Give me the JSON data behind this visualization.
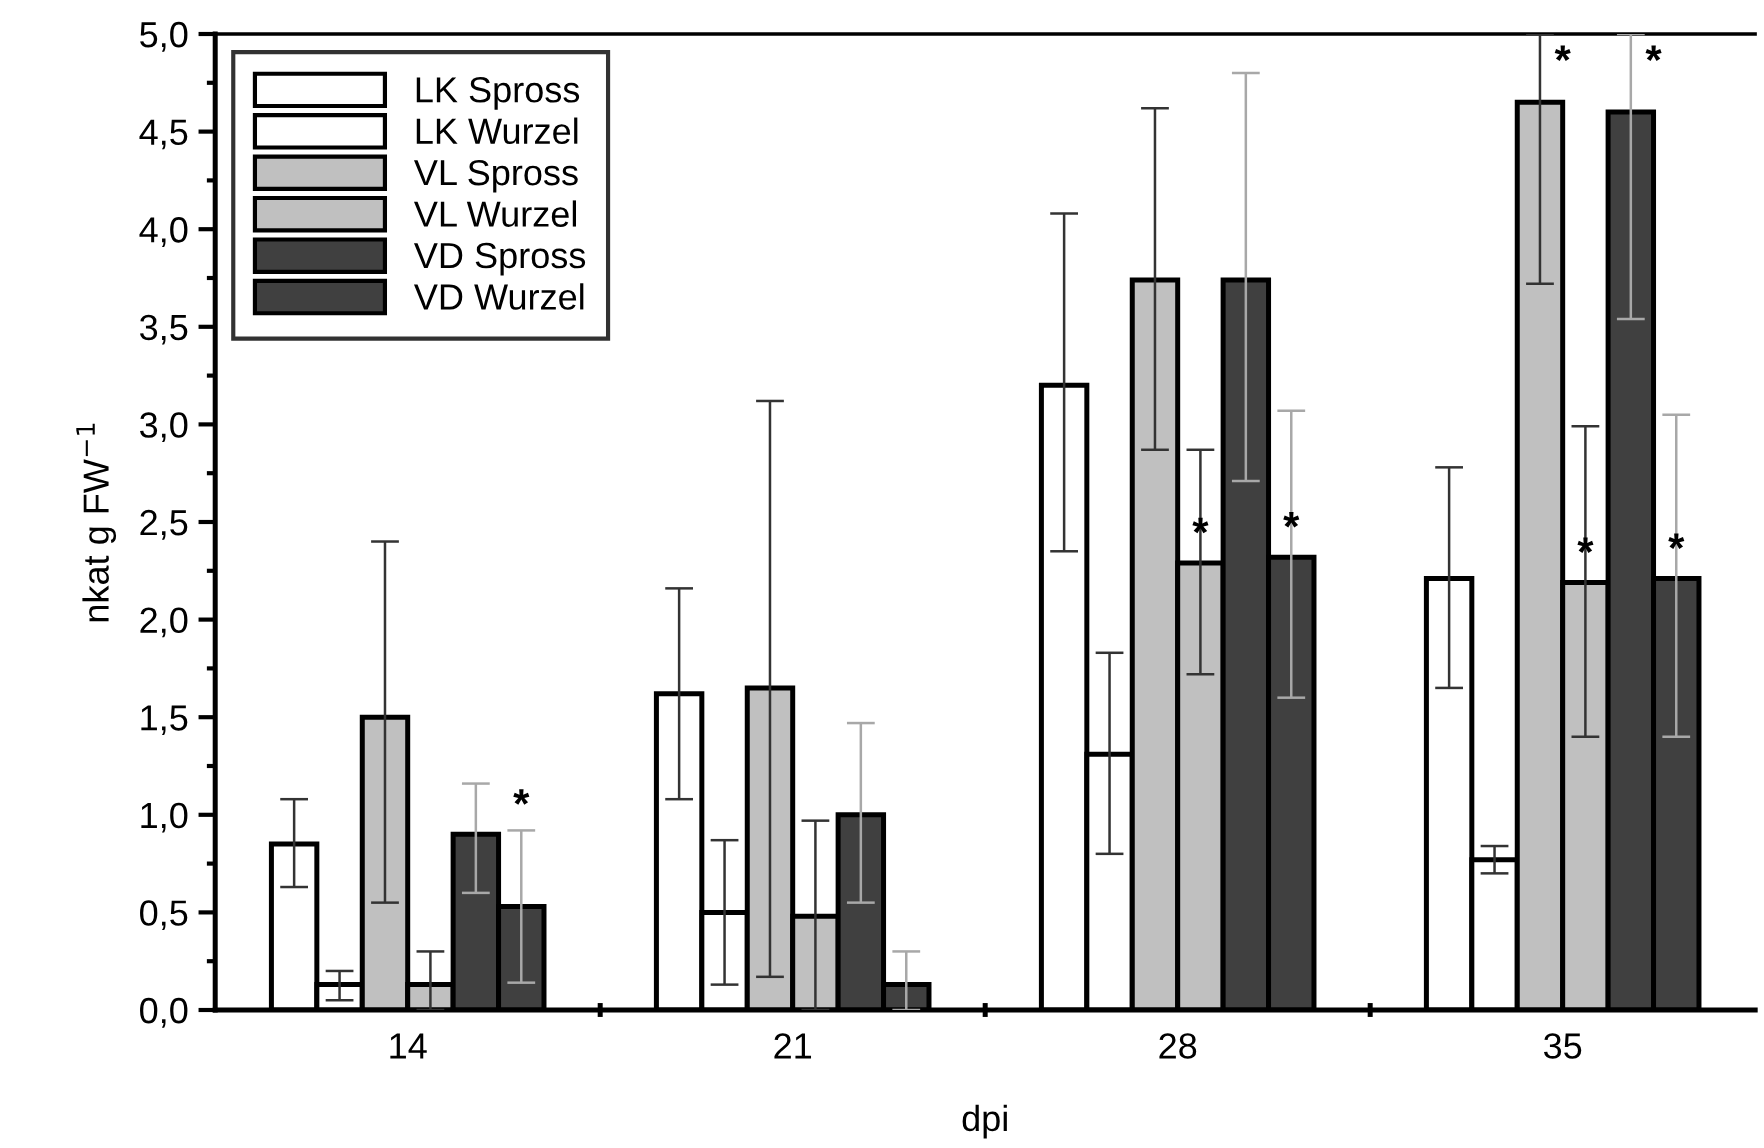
{
  "chart_data": {
    "type": "bar",
    "xlabel": "dpi",
    "ylabel": "nkat g FW$^{−1}$",
    "categories": [
      "14",
      "21",
      "28",
      "35"
    ],
    "series": [
      {
        "name": "LK Spross",
        "color": "#ffffff",
        "values": [
          0.85,
          1.62,
          3.2,
          2.21
        ],
        "errors": [
          [
            0.63,
            1.08
          ],
          [
            1.08,
            2.16
          ],
          [
            2.35,
            4.08
          ],
          [
            1.65,
            2.78
          ]
        ],
        "value_labels": [
          null,
          null,
          null,
          null
        ]
      },
      {
        "name": "LK Wurzel",
        "color": "#ffffff",
        "values": [
          0.13,
          0.5,
          1.31,
          0.77
        ],
        "errors": [
          [
            0.05,
            0.2
          ],
          [
            0.13,
            0.87
          ],
          [
            0.8,
            1.83
          ],
          [
            0.7,
            0.84
          ]
        ],
        "value_labels": [
          null,
          null,
          null,
          null
        ]
      },
      {
        "name": "VL Spross",
        "color": "#c0c0c0",
        "values": [
          1.5,
          1.65,
          3.74,
          4.65
        ],
        "errors": [
          [
            0.55,
            2.4
          ],
          [
            0.17,
            3.12
          ],
          [
            2.87,
            4.62
          ],
          [
            3.72,
            5.0
          ]
        ],
        "value_labels": [
          null,
          null,
          null,
          "*"
        ]
      },
      {
        "name": "VL Wurzel",
        "color": "#c0c0c0",
        "values": [
          0.13,
          0.48,
          2.29,
          2.19
        ],
        "errors": [
          [
            0.0,
            0.3
          ],
          [
            0.0,
            0.97
          ],
          [
            1.72,
            2.87
          ],
          [
            1.4,
            2.99
          ]
        ],
        "value_labels": [
          null,
          null,
          "*",
          "*"
        ]
      },
      {
        "name": "VD Spross",
        "color": "#404040",
        "values": [
          0.9,
          1.0,
          3.74,
          4.6
        ],
        "errors": [
          [
            0.6,
            1.16
          ],
          [
            0.55,
            1.47
          ],
          [
            2.71,
            4.8
          ],
          [
            3.54,
            5.0
          ]
        ],
        "value_labels": [
          null,
          null,
          null,
          "*"
        ]
      },
      {
        "name": "VD Wurzel",
        "color": "#404040",
        "values": [
          0.53,
          0.13,
          2.32,
          2.21
        ],
        "errors": [
          [
            0.14,
            0.92
          ],
          [
            0.0,
            0.3
          ],
          [
            1.6,
            3.07
          ],
          [
            1.4,
            3.05
          ]
        ],
        "value_labels": [
          "*",
          null,
          "*",
          "*"
        ]
      }
    ],
    "ylim": [
      0,
      5.0
    ],
    "yticks": [
      {
        "value": 0,
        "label": "0,0"
      },
      {
        "value": 0.5,
        "label": "0,5"
      },
      {
        "value": 1.0,
        "label": "1,0"
      },
      {
        "value": 1.5,
        "label": "1,5"
      },
      {
        "value": 2.0,
        "label": "2,0"
      },
      {
        "value": 2.5,
        "label": "2,5"
      },
      {
        "value": 3.0,
        "label": "3,0"
      },
      {
        "value": 3.5,
        "label": "3,5"
      },
      {
        "value": 4.0,
        "label": "4,0"
      },
      {
        "value": 4.5,
        "label": "4,5"
      },
      {
        "value": 5.0,
        "label": "5,0"
      }
    ],
    "grid": false,
    "legend": "top left"
  }
}
